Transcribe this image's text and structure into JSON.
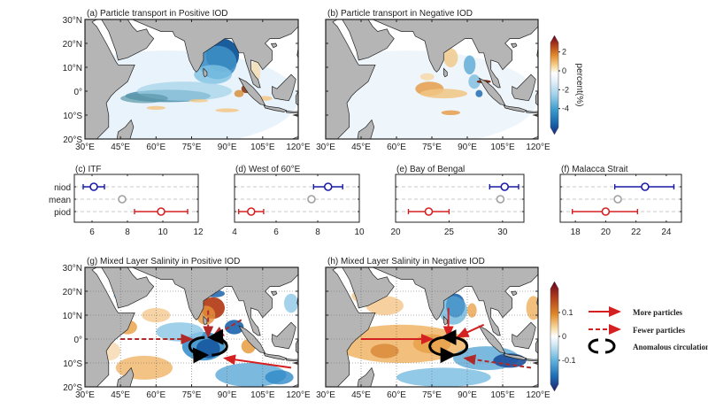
{
  "chart_data": [
    {
      "type": "heatmap",
      "id": "a",
      "title": "(a) Particle transport in Positive IOD",
      "xlim": [
        30,
        120
      ],
      "ylim": [
        -20,
        30
      ],
      "xticks": [
        "30°E",
        "45°E",
        "60°E",
        "75°E",
        "90°E",
        "105°E",
        "120°E"
      ],
      "yticks": [
        "30°N",
        "20°N",
        "10°N",
        "0°",
        "10°S",
        "20°S"
      ],
      "grid": false,
      "features": [
        {
          "name": "Bay of Bengal negative anomaly",
          "lon": 88,
          "lat": 14,
          "value": -5
        },
        {
          "name": "Equatorial negative band",
          "lon": 65,
          "lat": -2,
          "value": -3
        },
        {
          "name": "Sumatra positive anomaly",
          "lon": 98,
          "lat": 1,
          "value": 3
        },
        {
          "name": "Southern positive patches",
          "lon": 85,
          "lat": -8,
          "value": 1
        }
      ]
    },
    {
      "type": "heatmap",
      "id": "b",
      "title": "(b) Particle transport in Negative IOD",
      "xlim": [
        30,
        120
      ],
      "ylim": [
        -20,
        30
      ],
      "xticks": [
        "30°E",
        "45°E",
        "60°E",
        "75°E",
        "90°E",
        "105°E",
        "120°E"
      ],
      "yticks": [],
      "grid": false,
      "colorbar": {
        "label": "percent(%)",
        "ticks": [
          "2",
          "0",
          "-2",
          "-4"
        ],
        "range": [
          -6,
          3
        ],
        "extend": "both"
      },
      "features": [
        {
          "name": "Central Indian Ocean positive",
          "lon": 75,
          "lat": 3,
          "value": 1.5
        },
        {
          "name": "Eastern BoB negative",
          "lon": 92,
          "lat": 8,
          "value": -2
        },
        {
          "name": "Malacca positive",
          "lon": 97,
          "lat": 3,
          "value": 3
        },
        {
          "name": "Southern positive patch",
          "lon": 83,
          "lat": -9,
          "value": 1
        }
      ]
    },
    {
      "type": "scatter",
      "id": "c",
      "title": "(c) ITF",
      "categories": [
        "niod",
        "mean",
        "piod"
      ],
      "xlim": [
        5,
        12
      ],
      "xticks": [
        6,
        8,
        10,
        12
      ],
      "series": [
        {
          "name": "niod",
          "value": 6.1,
          "lo": 5.5,
          "hi": 6.7,
          "color": "#1a1aa6"
        },
        {
          "name": "mean",
          "value": 7.7,
          "color": "#a0a0a0"
        },
        {
          "name": "piod",
          "value": 9.9,
          "lo": 8.4,
          "hi": 11.4,
          "color": "#d62020"
        }
      ]
    },
    {
      "type": "scatter",
      "id": "d",
      "title": "(d) West of 60°E",
      "categories": [
        "niod",
        "mean",
        "piod"
      ],
      "xlim": [
        4,
        10
      ],
      "xticks": [
        4,
        6,
        8,
        10
      ],
      "series": [
        {
          "name": "niod",
          "value": 8.5,
          "lo": 7.8,
          "hi": 9.2,
          "color": "#1a1aa6"
        },
        {
          "name": "mean",
          "value": 7.7,
          "color": "#a0a0a0"
        },
        {
          "name": "piod",
          "value": 4.8,
          "lo": 4.2,
          "hi": 5.4,
          "color": "#d62020"
        }
      ]
    },
    {
      "type": "scatter",
      "id": "e",
      "title": "(e) Bay of Bengal",
      "categories": [
        "niod",
        "mean",
        "piod"
      ],
      "xlim": [
        20,
        32
      ],
      "xticks": [
        20,
        25,
        30
      ],
      "series": [
        {
          "name": "niod",
          "value": 30.2,
          "lo": 28.8,
          "hi": 31.5,
          "color": "#1a1aa6"
        },
        {
          "name": "mean",
          "value": 29.8,
          "color": "#a0a0a0"
        },
        {
          "name": "piod",
          "value": 23.1,
          "lo": 21.2,
          "hi": 25.0,
          "color": "#d62020"
        }
      ]
    },
    {
      "type": "scatter",
      "id": "f",
      "title": "(f) Malacca Strait",
      "categories": [
        "niod",
        "mean",
        "piod"
      ],
      "xlim": [
        17,
        25
      ],
      "xticks": [
        18,
        20,
        22,
        24
      ],
      "series": [
        {
          "name": "niod",
          "value": 22.6,
          "lo": 20.6,
          "hi": 24.5,
          "color": "#1a1aa6"
        },
        {
          "name": "mean",
          "value": 20.8,
          "color": "#a0a0a0"
        },
        {
          "name": "piod",
          "value": 20.0,
          "lo": 17.8,
          "hi": 22.1,
          "color": "#d62020"
        }
      ]
    },
    {
      "type": "heatmap",
      "id": "g",
      "title": "(g) Mixed Layer Salinity in Positive IOD",
      "xlim": [
        30,
        120
      ],
      "ylim": [
        -20,
        30
      ],
      "xticks": [
        "30°E",
        "45°E",
        "60°E",
        "75°E",
        "90°E",
        "105°E",
        "120°E"
      ],
      "yticks": [
        "30°N",
        "20°N",
        "10°N",
        "0°",
        "10°S",
        "20°S"
      ],
      "grid": true,
      "features": [
        {
          "name": "BoB positive",
          "lon": 83,
          "lat": 13,
          "value": 0.15
        },
        {
          "name": "Equatorial negative",
          "lon": 80,
          "lat": -3,
          "value": -0.15
        },
        {
          "name": "Southern positive",
          "lon": 55,
          "lat": -12,
          "value": 0.08
        },
        {
          "name": "Arabian Sea positive",
          "lon": 50,
          "lat": 5,
          "value": 0.08
        }
      ],
      "arrows": [
        {
          "style": "dashed",
          "from": [
            45,
            0
          ],
          "to": [
            75,
            0
          ]
        },
        {
          "style": "dashed",
          "from": [
            82,
            12
          ],
          "to": [
            82,
            1
          ]
        },
        {
          "style": "dashed",
          "from": [
            96,
            8
          ],
          "to": [
            84,
            1
          ]
        },
        {
          "style": "solid",
          "from": [
            117,
            -12
          ],
          "to": [
            89,
            -8
          ]
        }
      ],
      "circulation": {
        "lon": 82,
        "lat": -3,
        "direction": "clockwise"
      }
    },
    {
      "type": "heatmap",
      "id": "h",
      "title": "(h) Mixed Layer Salinity in Negative IOD",
      "xlim": [
        30,
        120
      ],
      "ylim": [
        -20,
        30
      ],
      "xticks": [
        "30°E",
        "45°E",
        "60°E",
        "75°E",
        "90°E",
        "105°E",
        "120°E"
      ],
      "yticks": [],
      "grid": true,
      "colorbar": {
        "label": "",
        "ticks": [
          "0.1",
          "0",
          "-0.1"
        ],
        "range": [
          -0.2,
          0.2
        ],
        "extend": "both"
      },
      "features": [
        {
          "name": "BoB negative",
          "lon": 85,
          "lat": 14,
          "value": -0.15
        },
        {
          "name": "Equatorial positive",
          "lon": 70,
          "lat": -2,
          "value": 0.1
        },
        {
          "name": "Southern negative",
          "lon": 95,
          "lat": -14,
          "value": -0.12
        }
      ],
      "arrows": [
        {
          "style": "solid",
          "from": [
            45,
            0
          ],
          "to": [
            75,
            0
          ]
        },
        {
          "style": "solid",
          "from": [
            82,
            13
          ],
          "to": [
            82,
            1
          ]
        },
        {
          "style": "solid",
          "from": [
            97,
            6
          ],
          "to": [
            86,
            1
          ]
        },
        {
          "style": "dashed",
          "from": [
            117,
            -12
          ],
          "to": [
            89,
            -8
          ]
        }
      ],
      "circulation": {
        "lon": 82,
        "lat": -3,
        "direction": "counterclockwise"
      }
    }
  ],
  "legend": {
    "more": "More particles",
    "fewer": "Fewer particles",
    "circulation": "Anomalous circulation"
  },
  "colors": {
    "red_arrow": "#d42020",
    "dashed_arrow": "#b02828",
    "niod": "#1a1aa6",
    "piod": "#d62020",
    "mean": "#a0a0a0",
    "land": "#b5b5b5"
  }
}
